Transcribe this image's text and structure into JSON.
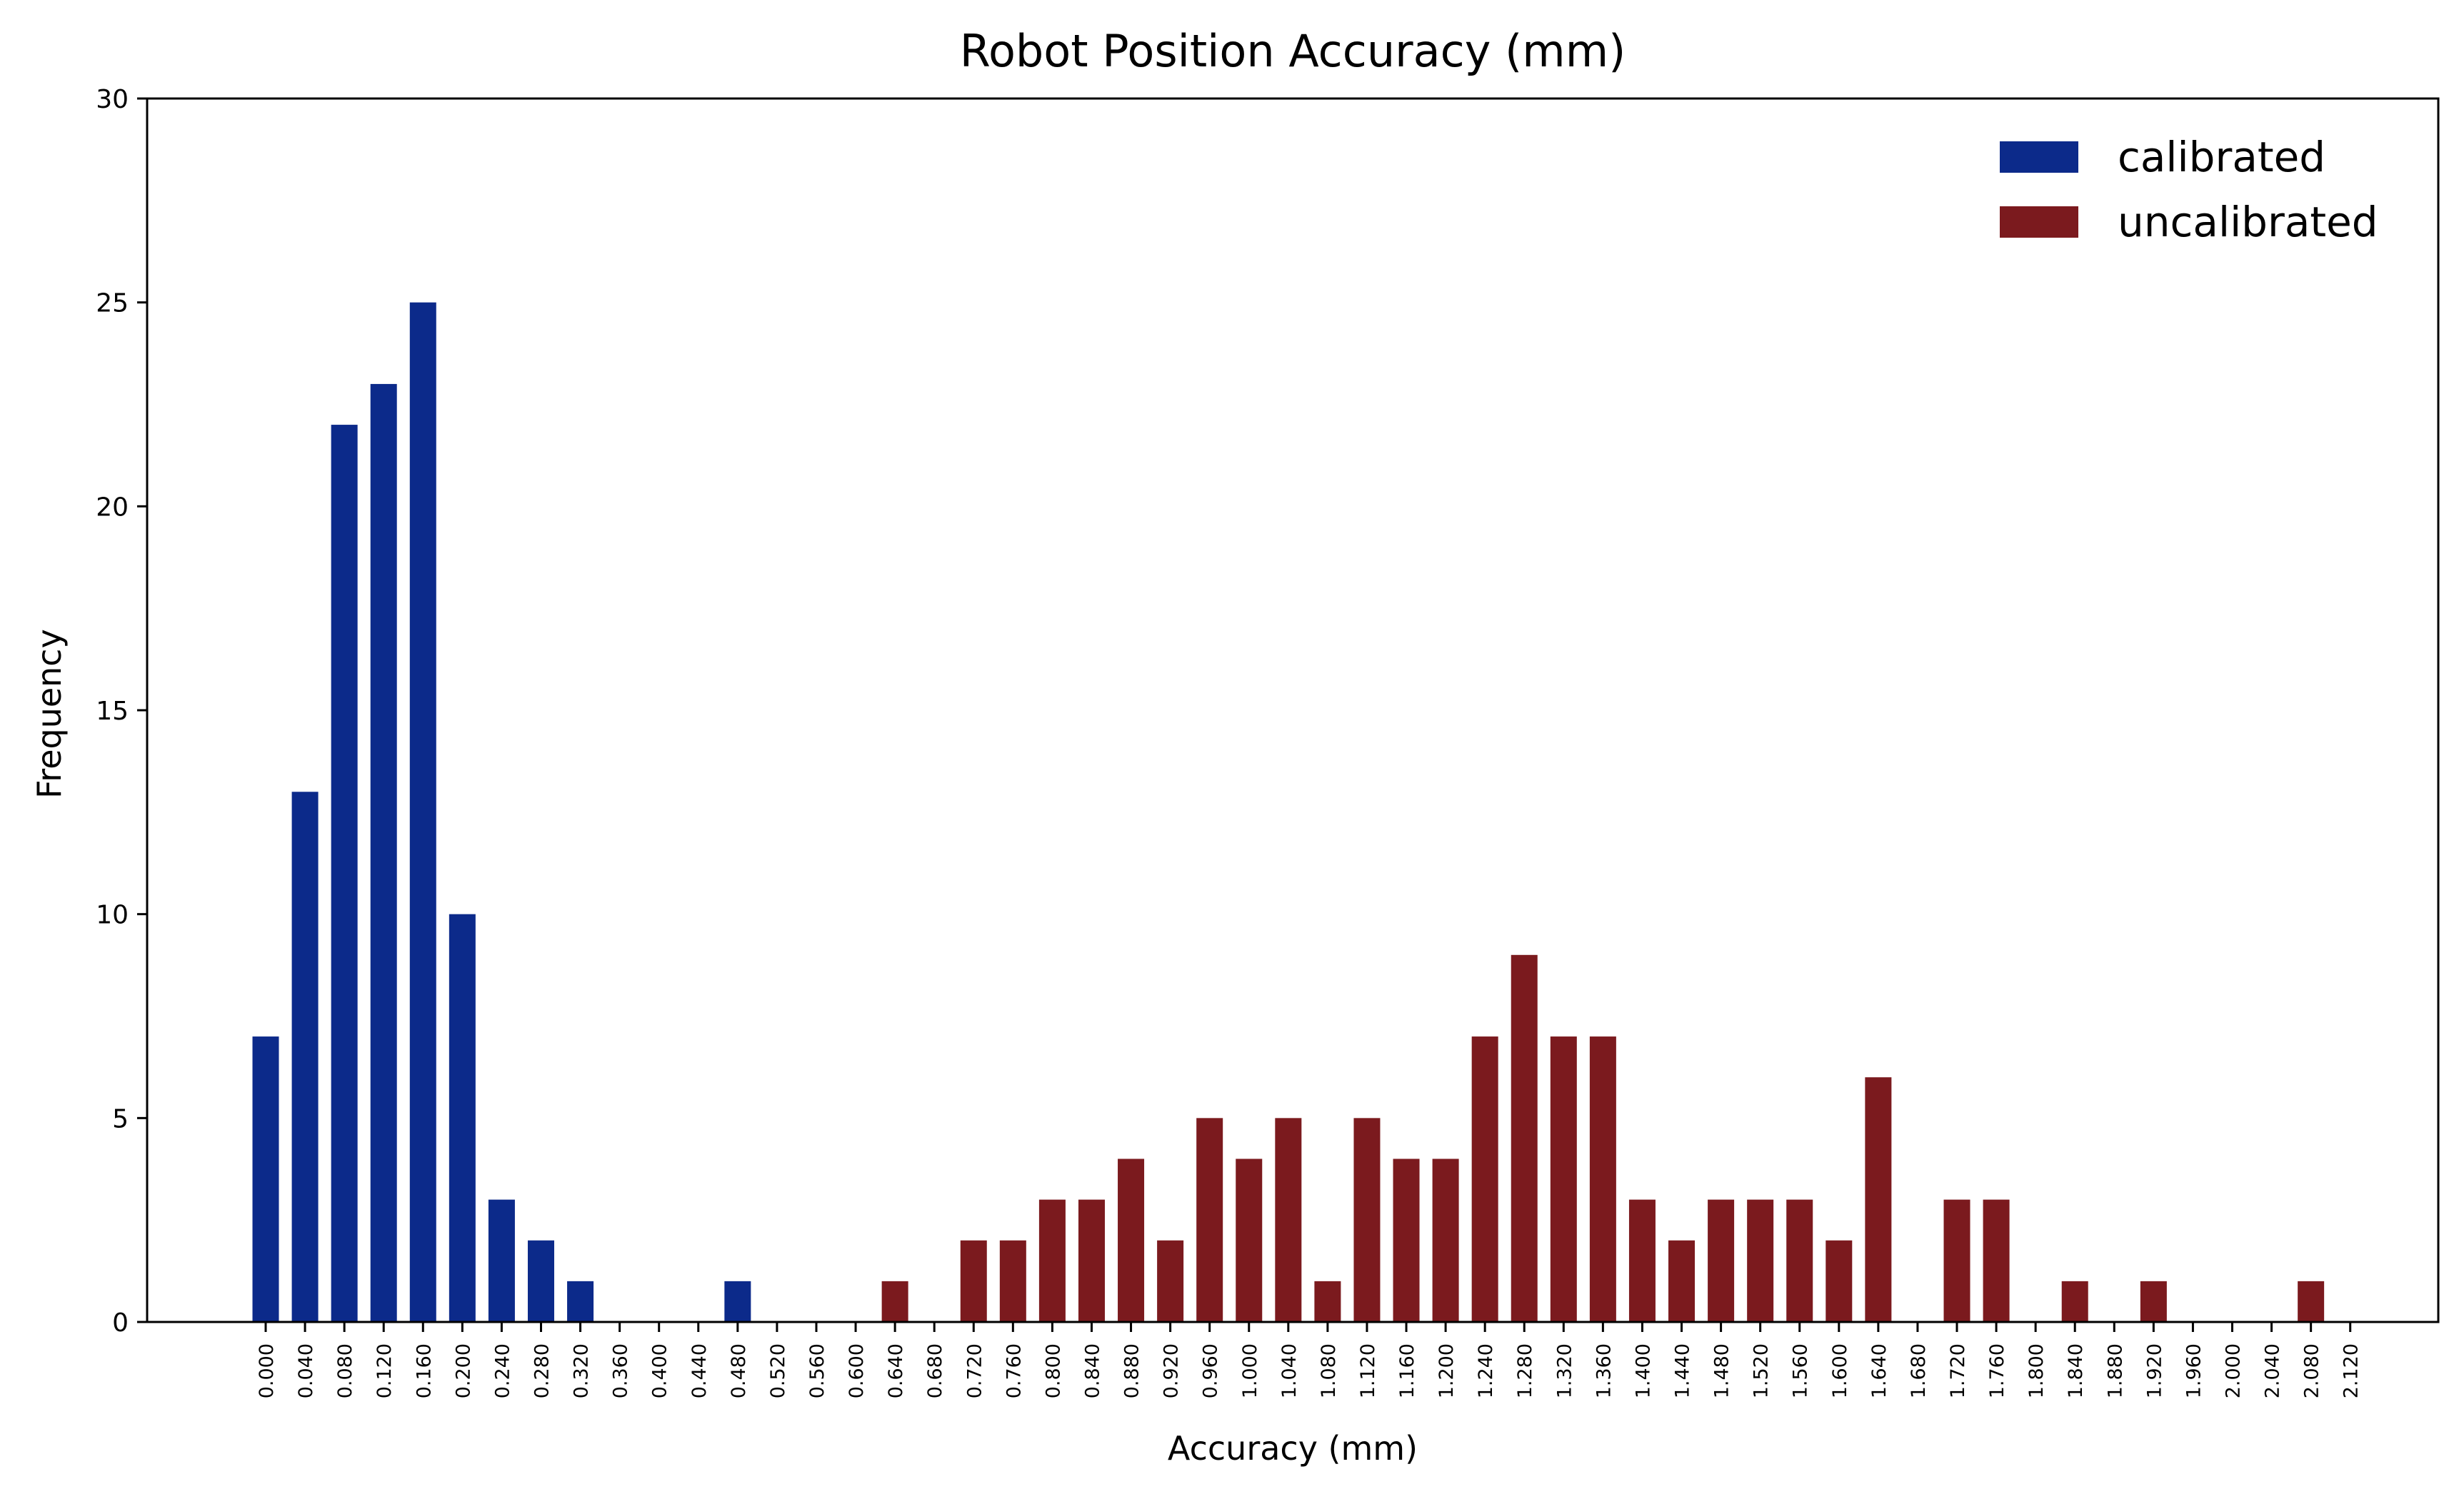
{
  "chart_data": {
    "type": "bar",
    "title": "Robot Position Accuracy (mm)",
    "xlabel": "Accuracy (mm)",
    "ylabel": "Frequency",
    "ylim": [
      0,
      30
    ],
    "yticks": [
      0,
      5,
      10,
      15,
      20,
      25,
      30
    ],
    "categories": [
      "0.000",
      "0.040",
      "0.080",
      "0.120",
      "0.160",
      "0.200",
      "0.240",
      "0.280",
      "0.320",
      "0.360",
      "0.400",
      "0.440",
      "0.480",
      "0.520",
      "0.560",
      "0.600",
      "0.640",
      "0.680",
      "0.720",
      "0.760",
      "0.800",
      "0.840",
      "0.880",
      "0.920",
      "0.960",
      "1.000",
      "1.040",
      "1.080",
      "1.120",
      "1.160",
      "1.200",
      "1.240",
      "1.280",
      "1.320",
      "1.360",
      "1.400",
      "1.440",
      "1.480",
      "1.520",
      "1.560",
      "1.600",
      "1.640",
      "1.680",
      "1.720",
      "1.760",
      "1.800",
      "1.840",
      "1.880",
      "1.920",
      "1.960",
      "2.000",
      "2.040",
      "2.080",
      "2.120"
    ],
    "grid": false,
    "legend_position": "top-right",
    "series": [
      {
        "name": "calibrated",
        "color": "#0c2a8a",
        "values": [
          7,
          13,
          22,
          23,
          25,
          10,
          3,
          2,
          1,
          0,
          0,
          0,
          1,
          0,
          0,
          0,
          0,
          0,
          0,
          0,
          0,
          0,
          0,
          0,
          0,
          0,
          0,
          0,
          0,
          0,
          0,
          0,
          0,
          0,
          0,
          0,
          0,
          0,
          0,
          0,
          0,
          0,
          0,
          0,
          0,
          0,
          0,
          0,
          0,
          0,
          0,
          0,
          0,
          0
        ]
      },
      {
        "name": "uncalibrated",
        "color": "#7b1a1e",
        "values": [
          0,
          0,
          0,
          0,
          0,
          0,
          0,
          0,
          0,
          0,
          0,
          0,
          0,
          0,
          0,
          0,
          1,
          0,
          2,
          2,
          3,
          3,
          4,
          2,
          5,
          4,
          5,
          1,
          5,
          4,
          4,
          7,
          9,
          7,
          7,
          3,
          2,
          3,
          3,
          3,
          2,
          6,
          0,
          3,
          3,
          0,
          1,
          0,
          1,
          0,
          0,
          0,
          1,
          0
        ]
      }
    ]
  }
}
